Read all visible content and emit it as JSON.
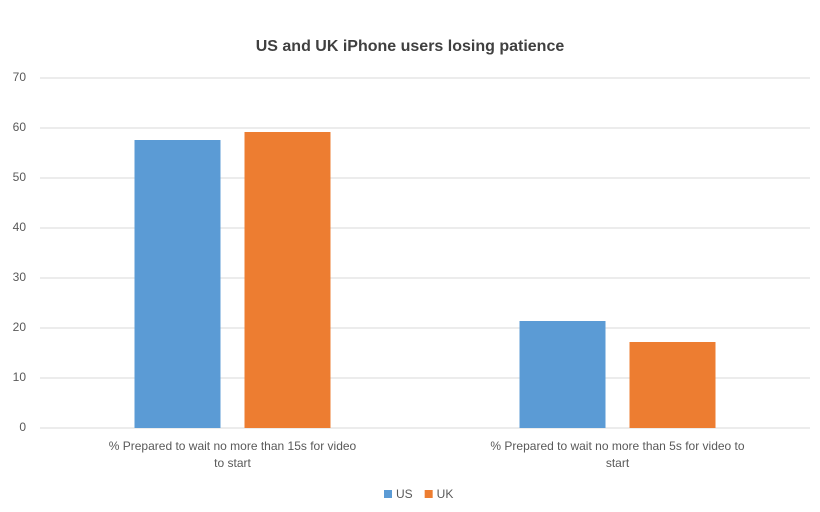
{
  "chart_data": {
    "type": "bar",
    "title": "US and UK iPhone users losing patience",
    "categories": [
      "% Prepared to wait no more than 15s for video to start",
      "% Prepared to wait no more than 5s for video to start"
    ],
    "series": [
      {
        "name": "US",
        "color": "#5b9bd5",
        "values": [
          57.6,
          21.4
        ]
      },
      {
        "name": "UK",
        "color": "#ed7d31",
        "values": [
          59.2,
          17.2
        ]
      }
    ],
    "ylim": [
      0,
      70
    ],
    "yticks": [
      0,
      10,
      20,
      30,
      40,
      50,
      60,
      70
    ],
    "grid": true,
    "legend": "bottom"
  }
}
